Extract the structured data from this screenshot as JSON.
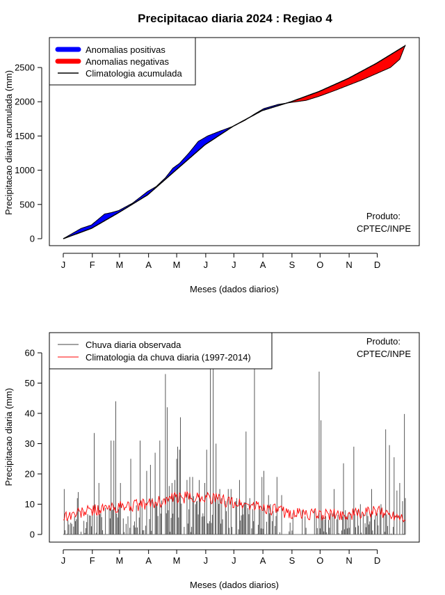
{
  "title": "Precipitacao diaria 2024 : Regiao 4",
  "chart_data": [
    {
      "type": "area",
      "ylabel": "Precipitacao diaria acumulada (mm)",
      "xlabel": "Meses (dados diarios)",
      "month_labels": [
        "J",
        "F",
        "M",
        "A",
        "M",
        "J",
        "J",
        "A",
        "S",
        "O",
        "N",
        "D"
      ],
      "yticks": [
        0,
        500,
        1000,
        1500,
        2000,
        2500
      ],
      "xlim": [
        1,
        366
      ],
      "ylim": [
        0,
        2850
      ],
      "legend": {
        "position": "top-left",
        "entries": [
          {
            "label": "Anomalias positivas",
            "color": "#0000ff"
          },
          {
            "label": "Anomalias negativas",
            "color": "#ff0000"
          },
          {
            "label": "Climatologia acumulada",
            "color": "#000000"
          }
        ]
      },
      "note_line1": "Produto:",
      "note_line2": "CPTEC/INPE",
      "climatology_knots": [
        [
          1,
          0
        ],
        [
          31,
          150
        ],
        [
          60,
          380
        ],
        [
          91,
          640
        ],
        [
          121,
          1000
        ],
        [
          152,
          1370
        ],
        [
          182,
          1640
        ],
        [
          213,
          1870
        ],
        [
          244,
          2000
        ],
        [
          274,
          2150
        ],
        [
          305,
          2340
        ],
        [
          335,
          2560
        ],
        [
          366,
          2820
        ]
      ],
      "observed_knots": [
        [
          1,
          0
        ],
        [
          20,
          150
        ],
        [
          31,
          200
        ],
        [
          45,
          360
        ],
        [
          52,
          380
        ],
        [
          60,
          410
        ],
        [
          75,
          520
        ],
        [
          91,
          690
        ],
        [
          100,
          760
        ],
        [
          110,
          890
        ],
        [
          118,
          1030
        ],
        [
          125,
          1100
        ],
        [
          135,
          1250
        ],
        [
          145,
          1420
        ],
        [
          155,
          1500
        ],
        [
          168,
          1570
        ],
        [
          182,
          1640
        ],
        [
          195,
          1730
        ],
        [
          205,
          1820
        ],
        [
          215,
          1900
        ],
        [
          230,
          1960
        ],
        [
          244,
          1990
        ],
        [
          260,
          2020
        ],
        [
          274,
          2080
        ],
        [
          290,
          2160
        ],
        [
          305,
          2240
        ],
        [
          320,
          2320
        ],
        [
          335,
          2410
        ],
        [
          350,
          2500
        ],
        [
          360,
          2620
        ],
        [
          366,
          2830
        ]
      ]
    },
    {
      "type": "bar",
      "ylabel": "Precipitacao diaria (mm)",
      "xlabel": "Meses (dados diarios)",
      "month_labels": [
        "J",
        "F",
        "M",
        "A",
        "M",
        "J",
        "J",
        "A",
        "S",
        "O",
        "N",
        "D"
      ],
      "yticks": [
        0,
        10,
        20,
        30,
        40,
        50,
        60
      ],
      "xlim": [
        1,
        366
      ],
      "ylim": [
        0,
        65
      ],
      "legend": {
        "position": "top-left",
        "entries": [
          {
            "label": "Chuva diaria observada",
            "color": "#444444"
          },
          {
            "label": "Climatologia da chuva diaria (1997-2014)",
            "color": "#ff0000"
          }
        ]
      },
      "note_line1": "Produto:",
      "note_line2": "CPTEC/INPE",
      "observed_peaks": [
        [
          2,
          15
        ],
        [
          16,
          12
        ],
        [
          17,
          14
        ],
        [
          34,
          33.5
        ],
        [
          39,
          17
        ],
        [
          52,
          31
        ],
        [
          55,
          31
        ],
        [
          57,
          44
        ],
        [
          62,
          17
        ],
        [
          73,
          25
        ],
        [
          83,
          31
        ],
        [
          90,
          21
        ],
        [
          94,
          23
        ],
        [
          96,
          12
        ],
        [
          99,
          27
        ],
        [
          104,
          31
        ],
        [
          110,
          53
        ],
        [
          112,
          42
        ],
        [
          114,
          16
        ],
        [
          117,
          17
        ],
        [
          120,
          18
        ],
        [
          122,
          25
        ],
        [
          123,
          29
        ],
        [
          125,
          28
        ],
        [
          126,
          38.7
        ],
        [
          133,
          18
        ],
        [
          136,
          19
        ],
        [
          139,
          19
        ],
        [
          142,
          10
        ],
        [
          146,
          18
        ],
        [
          147,
          12
        ],
        [
          152,
          17
        ],
        [
          154,
          28
        ],
        [
          158,
          66
        ],
        [
          161,
          66
        ],
        [
          164,
          30
        ],
        [
          168,
          15
        ],
        [
          170,
          12
        ],
        [
          177,
          15
        ],
        [
          180,
          15
        ],
        [
          186,
          12
        ],
        [
          189,
          18
        ],
        [
          196,
          34
        ],
        [
          200,
          12
        ],
        [
          205,
          55
        ],
        [
          213,
          19
        ],
        [
          215,
          21
        ],
        [
          220,
          13
        ],
        [
          222,
          10
        ],
        [
          229,
          19
        ],
        [
          234,
          13
        ],
        [
          246,
          7
        ],
        [
          256,
          8
        ],
        [
          259,
          6
        ],
        [
          269,
          8
        ],
        [
          271,
          6
        ],
        [
          274,
          53.8
        ],
        [
          276,
          37.7
        ],
        [
          281,
          6
        ],
        [
          286,
          7
        ],
        [
          290,
          15
        ],
        [
          293,
          5
        ],
        [
          300,
          23.5
        ],
        [
          302,
          8
        ],
        [
          311,
          29
        ],
        [
          315,
          8
        ],
        [
          318,
          10
        ],
        [
          321,
          7
        ],
        [
          325,
          8
        ],
        [
          330,
          15
        ],
        [
          336,
          7
        ],
        [
          340,
          10
        ],
        [
          345,
          34.7
        ],
        [
          349,
          29.5
        ],
        [
          354,
          25.5
        ],
        [
          357,
          14.5
        ],
        [
          360,
          17
        ],
        [
          363,
          11
        ],
        [
          365,
          39.8
        ],
        [
          366,
          12
        ]
      ],
      "climatology_knots": [
        [
          1,
          6
        ],
        [
          31,
          8
        ],
        [
          60,
          9
        ],
        [
          91,
          10
        ],
        [
          121,
          12
        ],
        [
          152,
          12.5
        ],
        [
          182,
          10.5
        ],
        [
          213,
          9
        ],
        [
          244,
          7
        ],
        [
          274,
          6.5
        ],
        [
          305,
          6.5
        ],
        [
          335,
          7.5
        ],
        [
          366,
          6
        ]
      ]
    }
  ]
}
